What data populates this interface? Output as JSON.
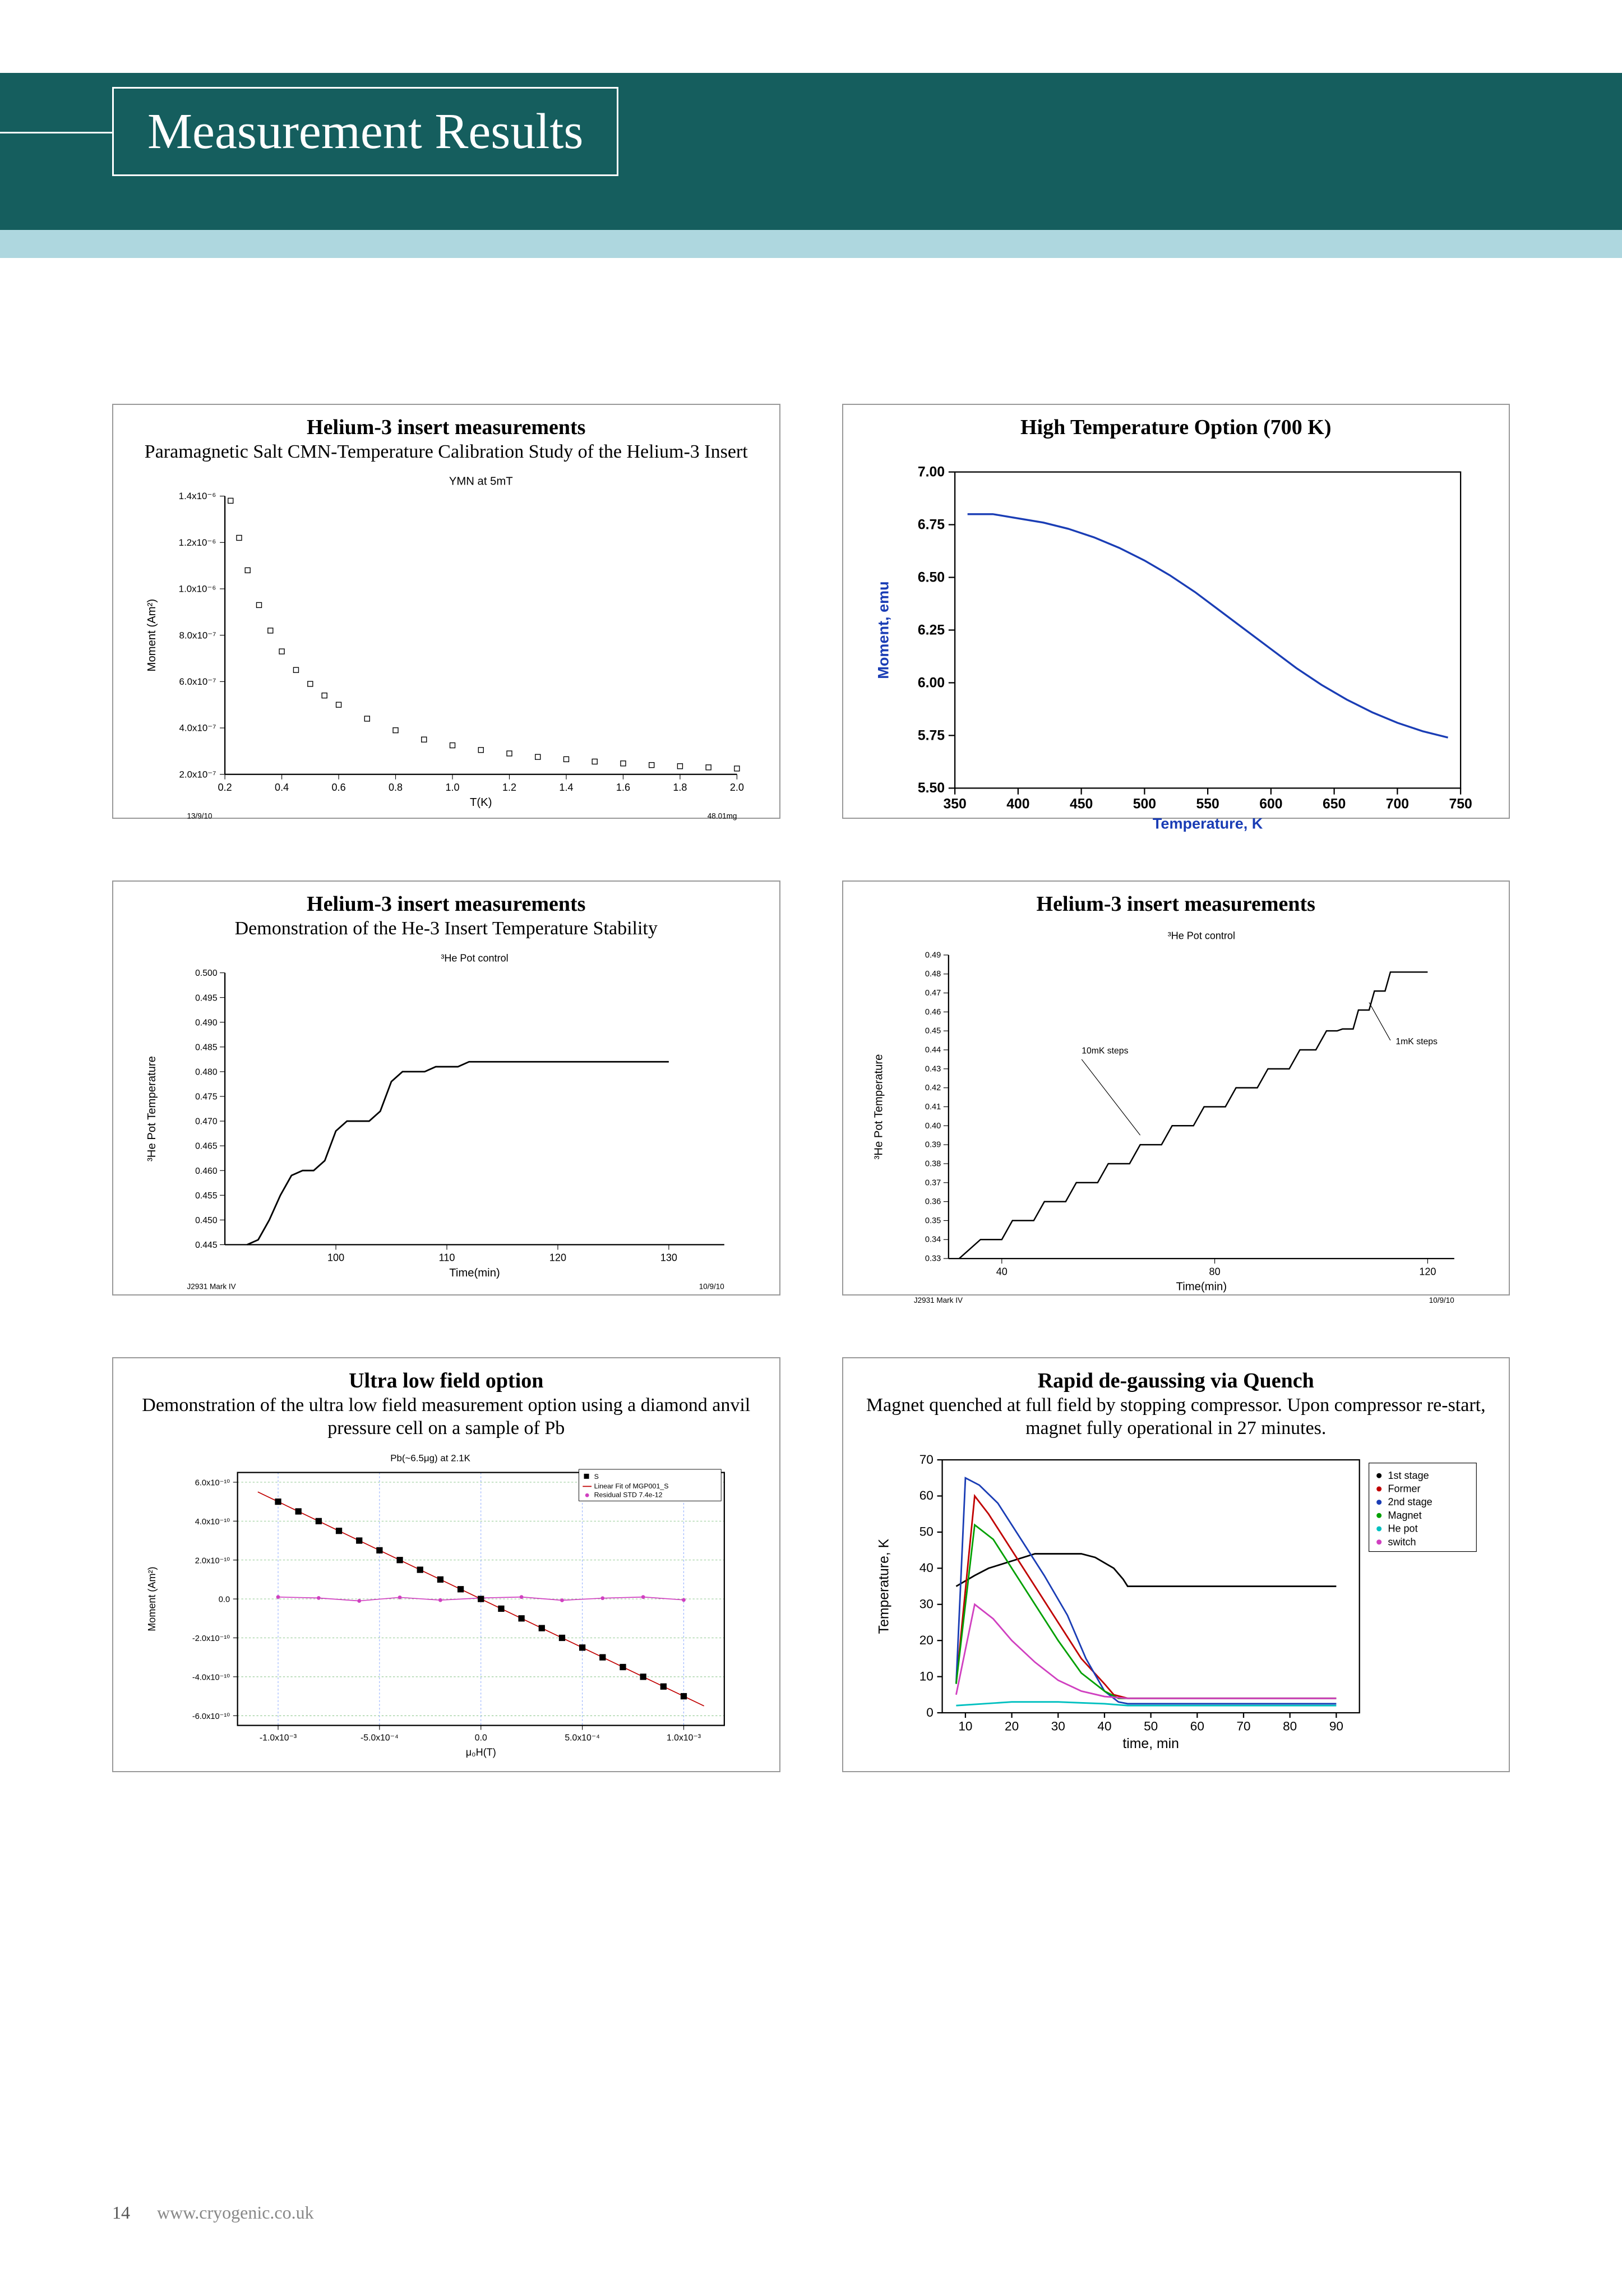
{
  "page": {
    "title": "Measurement  Results",
    "page_number": "14",
    "footer_url": "www.cryogenic.co.uk",
    "colors": {
      "band": "#155e5e",
      "subband": "#aed7df",
      "panel_border": "#999999",
      "axis": "#000000",
      "grid": "#d0d0d0",
      "blue": "#1a3db5",
      "blue_label": "#1a3db5"
    }
  },
  "panels": {
    "p1": {
      "title": "Helium-3 insert measurements",
      "sub": "Paramagnetic Salt CMN-Temperature Calibration Study of the Helium-3 Insert",
      "chart_title": "YMN at 5mT",
      "xlabel": "T(K)",
      "ylabel": "Moment (Am²)",
      "footnote_left": "13/9/10",
      "footnote_right": "48.01mg",
      "xlim": [
        0.2,
        2.0
      ],
      "xticks": [
        0.2,
        0.4,
        0.6,
        0.8,
        1.0,
        1.2,
        1.4,
        1.6,
        1.8,
        2.0
      ],
      "yticks": [
        "2.0x10⁻⁷",
        "4.0x10⁻⁷",
        "6.0x10⁻⁷",
        "8.0x10⁻⁷",
        "1.0x10⁻⁶",
        "1.2x10⁻⁶",
        "1.4x10⁻⁶"
      ],
      "yvals": [
        2,
        4,
        6,
        8,
        10,
        12,
        14
      ],
      "data": [
        [
          0.22,
          13.8
        ],
        [
          0.25,
          12.2
        ],
        [
          0.28,
          10.8
        ],
        [
          0.32,
          9.3
        ],
        [
          0.36,
          8.2
        ],
        [
          0.4,
          7.3
        ],
        [
          0.45,
          6.5
        ],
        [
          0.5,
          5.9
        ],
        [
          0.55,
          5.4
        ],
        [
          0.6,
          5.0
        ],
        [
          0.7,
          4.4
        ],
        [
          0.8,
          3.9
        ],
        [
          0.9,
          3.5
        ],
        [
          1.0,
          3.25
        ],
        [
          1.1,
          3.05
        ],
        [
          1.2,
          2.9
        ],
        [
          1.3,
          2.75
        ],
        [
          1.4,
          2.65
        ],
        [
          1.5,
          2.55
        ],
        [
          1.6,
          2.47
        ],
        [
          1.7,
          2.4
        ],
        [
          1.8,
          2.35
        ],
        [
          1.9,
          2.3
        ],
        [
          2.0,
          2.25
        ]
      ],
      "marker": "open-square",
      "marker_color": "#000000"
    },
    "p2": {
      "title": "High Temperature Option (700 K)",
      "xlabel": "Temperature, K",
      "ylabel": "Moment, emu",
      "xlim": [
        350,
        750
      ],
      "xticks": [
        350,
        400,
        450,
        500,
        550,
        600,
        650,
        700,
        750
      ],
      "ylim": [
        5.5,
        7.0
      ],
      "yticks": [
        5.5,
        5.75,
        6.0,
        6.25,
        6.5,
        6.75,
        7.0
      ],
      "line_color": "#1a3db5",
      "data": [
        [
          360,
          6.8
        ],
        [
          380,
          6.8
        ],
        [
          400,
          6.78
        ],
        [
          420,
          6.76
        ],
        [
          440,
          6.73
        ],
        [
          460,
          6.69
        ],
        [
          480,
          6.64
        ],
        [
          500,
          6.58
        ],
        [
          520,
          6.51
        ],
        [
          540,
          6.43
        ],
        [
          560,
          6.34
        ],
        [
          580,
          6.25
        ],
        [
          600,
          6.16
        ],
        [
          620,
          6.07
        ],
        [
          640,
          5.99
        ],
        [
          660,
          5.92
        ],
        [
          680,
          5.86
        ],
        [
          700,
          5.81
        ],
        [
          720,
          5.77
        ],
        [
          740,
          5.74
        ]
      ]
    },
    "p3": {
      "title": "Helium-3 insert measurements",
      "sub": "Demonstration of the He-3 Insert Temperature Stability",
      "chart_title": "³He Pot control",
      "xlabel": "Time(min)",
      "ylabel": "³He Pot Temperature",
      "footnote_left": "J2931 Mark IV",
      "footnote_right": "10/9/10",
      "xlim": [
        90,
        135
      ],
      "xticks": [
        100,
        110,
        120,
        130
      ],
      "ylim": [
        0.445,
        0.5
      ],
      "yticks": [
        0.445,
        0.45,
        0.455,
        0.46,
        0.465,
        0.47,
        0.475,
        0.48,
        0.485,
        0.49,
        0.495,
        0.5
      ],
      "line_color": "#000000",
      "data": [
        [
          92,
          0.445
        ],
        [
          93,
          0.446
        ],
        [
          94,
          0.45
        ],
        [
          95,
          0.455
        ],
        [
          96,
          0.459
        ],
        [
          97,
          0.46
        ],
        [
          98,
          0.46
        ],
        [
          99,
          0.462
        ],
        [
          100,
          0.468
        ],
        [
          101,
          0.47
        ],
        [
          102,
          0.47
        ],
        [
          103,
          0.47
        ],
        [
          104,
          0.472
        ],
        [
          105,
          0.478
        ],
        [
          106,
          0.48
        ],
        [
          107,
          0.48
        ],
        [
          108,
          0.48
        ],
        [
          109,
          0.481
        ],
        [
          110,
          0.481
        ],
        [
          111,
          0.481
        ],
        [
          112,
          0.482
        ],
        [
          113,
          0.482
        ],
        [
          114,
          0.482
        ],
        [
          130,
          0.482
        ]
      ]
    },
    "p4": {
      "title": "Helium-3 insert measurements",
      "chart_title": "³He Pot control",
      "xlabel": "Time(min)",
      "ylabel": "³He Pot Temperature",
      "footnote_left": "J2931 Mark IV",
      "footnote_right": "10/9/10",
      "annot1": "10mK steps",
      "annot2": "1mK steps",
      "xlim": [
        30,
        125
      ],
      "xticks": [
        40,
        80,
        120
      ],
      "ylim": [
        0.33,
        0.49
      ],
      "yticks": [
        0.33,
        0.34,
        0.35,
        0.36,
        0.37,
        0.38,
        0.39,
        0.4,
        0.41,
        0.42,
        0.43,
        0.44,
        0.45,
        0.46,
        0.47,
        0.48,
        0.49
      ],
      "line_color": "#000000",
      "data": [
        [
          32,
          0.33
        ],
        [
          36,
          0.34
        ],
        [
          40,
          0.34
        ],
        [
          42,
          0.35
        ],
        [
          46,
          0.35
        ],
        [
          48,
          0.36
        ],
        [
          52,
          0.36
        ],
        [
          54,
          0.37
        ],
        [
          58,
          0.37
        ],
        [
          60,
          0.38
        ],
        [
          64,
          0.38
        ],
        [
          66,
          0.39
        ],
        [
          70,
          0.39
        ],
        [
          72,
          0.4
        ],
        [
          76,
          0.4
        ],
        [
          78,
          0.41
        ],
        [
          82,
          0.41
        ],
        [
          84,
          0.42
        ],
        [
          88,
          0.42
        ],
        [
          90,
          0.43
        ],
        [
          94,
          0.43
        ],
        [
          96,
          0.44
        ],
        [
          99,
          0.44
        ],
        [
          101,
          0.45
        ],
        [
          103,
          0.45
        ],
        [
          104,
          0.451
        ],
        [
          106,
          0.451
        ],
        [
          107,
          0.461
        ],
        [
          109,
          0.461
        ],
        [
          110,
          0.471
        ],
        [
          112,
          0.471
        ],
        [
          113,
          0.481
        ],
        [
          120,
          0.481
        ]
      ]
    },
    "p5": {
      "title": "Ultra low field option",
      "sub": "Demonstration of the ultra low field measurement option using a diamond anvil pressure cell on a sample of Pb",
      "chart_title": "Pb(~6.5μg) at 2.1K",
      "xlabel": "μ₀H(T)",
      "ylabel": "Moment (Am²)",
      "legend": [
        "S",
        "Linear Fit of MGP001_S",
        "Residual STD 7.4e-12"
      ],
      "xlim": [
        -0.0012,
        0.0012
      ],
      "xticks_labels": [
        "-1.0x10⁻³",
        "-5.0x10⁻⁴",
        "0.0",
        "5.0x10⁻⁴",
        "1.0x10⁻³"
      ],
      "xticks_vals": [
        -0.001,
        -0.0005,
        0,
        0.0005,
        0.001
      ],
      "yticks_labels": [
        "-6.0x10⁻¹⁰",
        "-4.0x10⁻¹⁰",
        "-2.0x10⁻¹⁰",
        "0.0",
        "2.0x10⁻¹⁰",
        "4.0x10⁻¹⁰",
        "6.0x10⁻¹⁰"
      ],
      "yticks_vals": [
        -6,
        -4,
        -2,
        0,
        2,
        4,
        6
      ],
      "grid_colors": [
        "#7fbf7f",
        "#7fa0ff"
      ],
      "marker_color": "#000000",
      "fit_color": "#c00000",
      "resid_color": "#d040c0",
      "data": [
        [
          -0.001,
          5.0
        ],
        [
          -0.0009,
          4.5
        ],
        [
          -0.0008,
          4.0
        ],
        [
          -0.0007,
          3.5
        ],
        [
          -0.0006,
          3.0
        ],
        [
          -0.0005,
          2.5
        ],
        [
          -0.0004,
          2.0
        ],
        [
          -0.0003,
          1.5
        ],
        [
          -0.0002,
          1.0
        ],
        [
          -0.0001,
          0.5
        ],
        [
          0,
          0
        ],
        [
          0.0001,
          -0.5
        ],
        [
          0.0002,
          -1.0
        ],
        [
          0.0003,
          -1.5
        ],
        [
          0.0004,
          -2.0
        ],
        [
          0.0005,
          -2.5
        ],
        [
          0.0006,
          -3.0
        ],
        [
          0.0007,
          -3.5
        ],
        [
          0.0008,
          -4.0
        ],
        [
          0.0009,
          -4.5
        ],
        [
          0.001,
          -5.0
        ]
      ],
      "resid": [
        [
          -0.001,
          0.1
        ],
        [
          -0.0008,
          0.05
        ],
        [
          -0.0006,
          -0.1
        ],
        [
          -0.0004,
          0.08
        ],
        [
          -0.0002,
          -0.06
        ],
        [
          0,
          0.05
        ],
        [
          0.0002,
          0.1
        ],
        [
          0.0004,
          -0.07
        ],
        [
          0.0006,
          0.04
        ],
        [
          0.0008,
          0.1
        ],
        [
          0.001,
          -0.05
        ]
      ]
    },
    "p6": {
      "title": "Rapid de-gaussing via Quench",
      "sub": "Magnet quenched at full field by stopping compressor. Upon compressor re-start, magnet fully operational in 27 minutes.",
      "xlabel": "time, min",
      "ylabel": "Temperature, K",
      "xlim": [
        5,
        95
      ],
      "xticks": [
        10,
        20,
        30,
        40,
        50,
        60,
        70,
        80,
        90
      ],
      "ylim": [
        0,
        70
      ],
      "yticks": [
        0,
        10,
        20,
        30,
        40,
        50,
        60,
        70
      ],
      "legend": [
        "1st stage",
        "Former",
        "2nd stage",
        "Magnet",
        "He pot",
        "switch"
      ],
      "series": {
        "first_stage": {
          "color": "#000000",
          "data": [
            [
              8,
              35
            ],
            [
              12,
              38
            ],
            [
              15,
              40
            ],
            [
              20,
              42
            ],
            [
              25,
              44
            ],
            [
              30,
              44
            ],
            [
              35,
              44
            ],
            [
              38,
              43
            ],
            [
              42,
              40
            ],
            [
              44,
              37
            ],
            [
              45,
              35
            ],
            [
              90,
              35
            ]
          ]
        },
        "former": {
          "color": "#c00000",
          "data": [
            [
              8,
              8
            ],
            [
              12,
              60
            ],
            [
              15,
              55
            ],
            [
              20,
              45
            ],
            [
              25,
              35
            ],
            [
              30,
              25
            ],
            [
              35,
              15
            ],
            [
              40,
              8
            ],
            [
              42,
              5
            ],
            [
              45,
              4
            ],
            [
              90,
              4
            ]
          ]
        },
        "second_stage": {
          "color": "#1a3db5",
          "data": [
            [
              8,
              8
            ],
            [
              10,
              65
            ],
            [
              13,
              63
            ],
            [
              17,
              58
            ],
            [
              22,
              48
            ],
            [
              27,
              38
            ],
            [
              32,
              27
            ],
            [
              36,
              15
            ],
            [
              40,
              6
            ],
            [
              43,
              3
            ],
            [
              45,
              2.5
            ],
            [
              90,
              2.5
            ]
          ]
        },
        "magnet": {
          "color": "#00a000",
          "data": [
            [
              8,
              8
            ],
            [
              12,
              52
            ],
            [
              16,
              48
            ],
            [
              20,
              40
            ],
            [
              25,
              30
            ],
            [
              30,
              20
            ],
            [
              35,
              11
            ],
            [
              40,
              6
            ],
            [
              43,
              4
            ],
            [
              45,
              4
            ],
            [
              90,
              4
            ]
          ]
        },
        "he_pot": {
          "color": "#00c0c0",
          "data": [
            [
              8,
              2
            ],
            [
              20,
              3
            ],
            [
              30,
              3
            ],
            [
              40,
              2.5
            ],
            [
              45,
              2
            ],
            [
              90,
              2
            ]
          ]
        },
        "switch": {
          "color": "#d040c0",
          "data": [
            [
              8,
              5
            ],
            [
              12,
              30
            ],
            [
              16,
              26
            ],
            [
              20,
              20
            ],
            [
              25,
              14
            ],
            [
              30,
              9
            ],
            [
              35,
              6
            ],
            [
              40,
              4.5
            ],
            [
              45,
              4
            ],
            [
              90,
              4
            ]
          ]
        }
      }
    }
  }
}
